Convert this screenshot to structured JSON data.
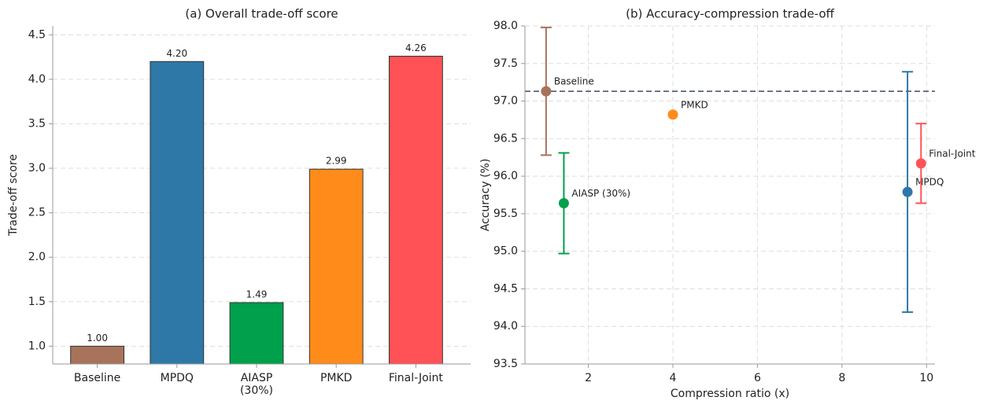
{
  "chart_data": [
    {
      "type": "bar",
      "title": "(a) Overall trade-off score",
      "ylabel": "Trade-off score",
      "categories": [
        "Baseline",
        "MPDQ",
        "AIASP\n(30%)",
        "PMKD",
        "Final-Joint"
      ],
      "values": [
        1.0,
        4.2,
        1.49,
        2.99,
        4.26
      ],
      "value_labels": [
        "1.00",
        "4.20",
        "1.49",
        "2.99",
        "4.26"
      ],
      "colors": [
        "#a8735b",
        "#2e78a8",
        "#00a04c",
        "#ff8c1a",
        "#ff5257"
      ],
      "ylim": [
        0.8,
        4.6
      ],
      "yticks": [
        {
          "value": 1,
          "label": "1.0"
        },
        {
          "value": 1.5,
          "label": "1.5"
        },
        {
          "value": 2,
          "label": "2.0"
        },
        {
          "value": 2.5,
          "label": "2.5"
        },
        {
          "value": 3,
          "label": "3.0"
        },
        {
          "value": 3.5,
          "label": "3.5"
        },
        {
          "value": 4,
          "label": "4.0"
        },
        {
          "value": 4.5,
          "label": "4.5"
        }
      ],
      "grid": true
    },
    {
      "type": "scatter",
      "title": "(b) Accuracy-compression trade-off",
      "xlabel": "Compression ratio (x)",
      "ylabel": "Accuracy (%)",
      "series": [
        {
          "name": "Baseline",
          "color": "#a8735b",
          "x": [
            1.0
          ],
          "values": [
            97.13
          ],
          "errors": [
            0.85
          ]
        },
        {
          "name": "MPDQ",
          "color": "#2e78a8",
          "x": [
            9.55
          ],
          "values": [
            95.79
          ],
          "errors": [
            1.6
          ]
        },
        {
          "name": "AIASP (30%)",
          "color": "#00a04c",
          "x": [
            1.42
          ],
          "values": [
            95.64
          ],
          "errors": [
            0.67
          ]
        },
        {
          "name": "PMKD",
          "color": "#ff8c1a",
          "x": [
            4.0
          ],
          "values": [
            96.82
          ]
        },
        {
          "name": "Final-Joint",
          "color": "#ff5257",
          "x": [
            9.87
          ],
          "values": [
            96.17
          ],
          "errors": [
            0.53
          ]
        }
      ],
      "hline": 97.13,
      "xlim": [
        0.5,
        10.2
      ],
      "ylim": [
        93.5,
        98.0
      ],
      "xticks": [
        2,
        4,
        6,
        8,
        10
      ],
      "yticks": [
        {
          "value": 93.5,
          "label": "93.5"
        },
        {
          "value": 94,
          "label": "94.0"
        },
        {
          "value": 94.5,
          "label": "94.5"
        },
        {
          "value": 95,
          "label": "95.0"
        },
        {
          "value": 95.5,
          "label": "95.5"
        },
        {
          "value": 96,
          "label": "96.0"
        },
        {
          "value": 96.5,
          "label": "96.5"
        },
        {
          "value": 97,
          "label": "97.0"
        },
        {
          "value": 97.5,
          "label": "97.5"
        },
        {
          "value": 98,
          "label": "98.0"
        }
      ],
      "grid": true
    }
  ]
}
